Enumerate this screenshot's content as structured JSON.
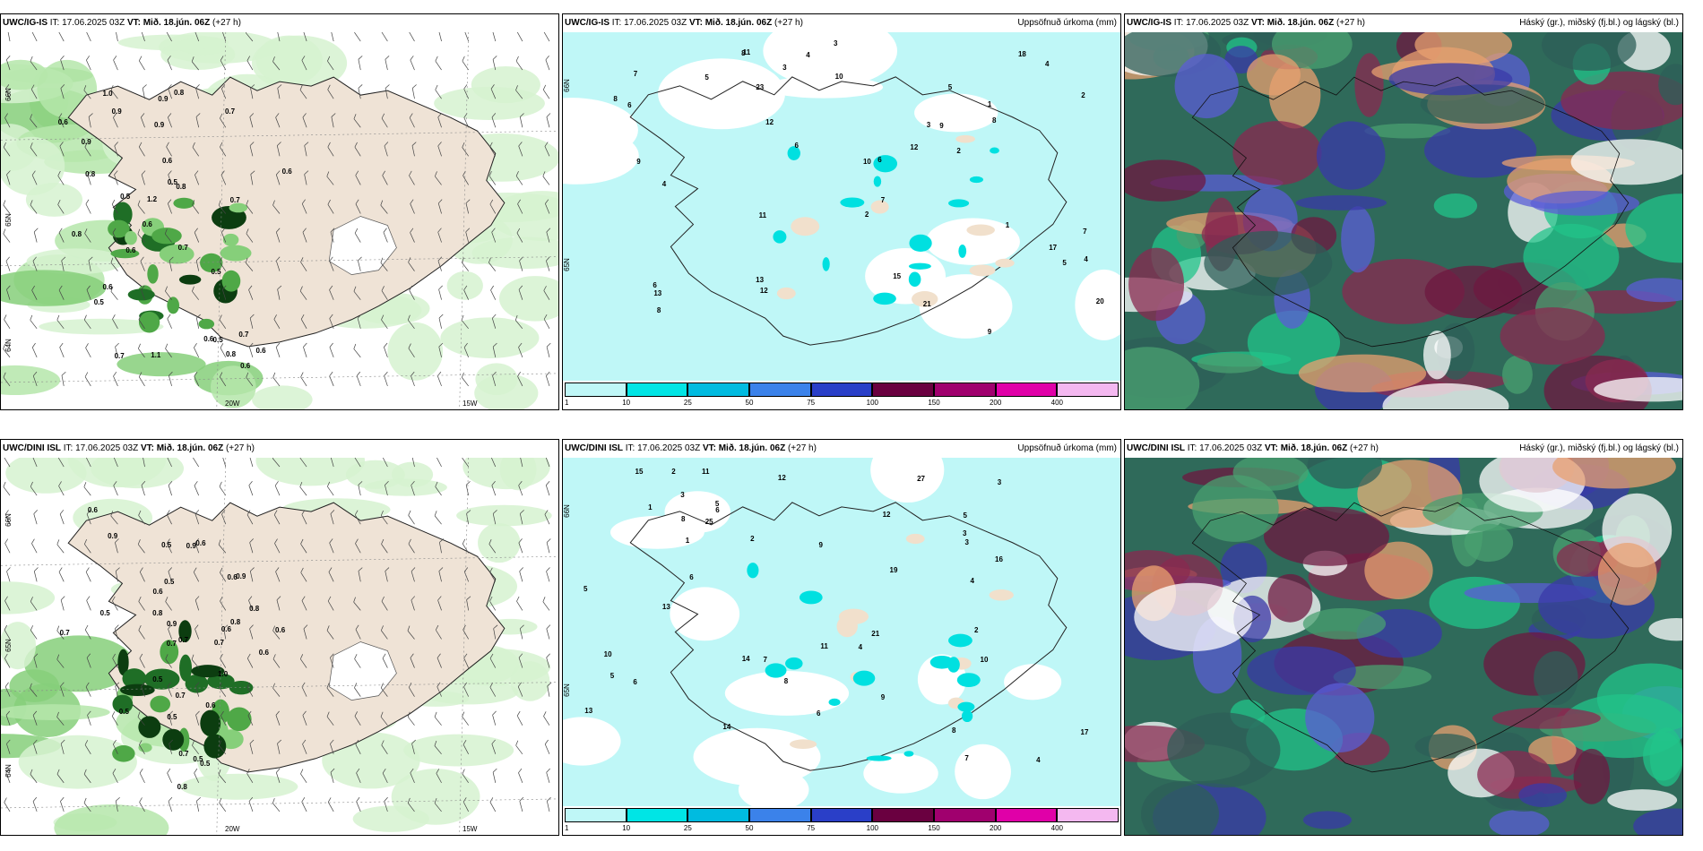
{
  "panels": [
    {
      "model": "UWC/IG-IS",
      "it": "IT: 17.06.2025 03Z",
      "vt": "VT: Mið. 18.jún. 06Z",
      "lead": "(+27 h)",
      "title": "",
      "lon_labels": [
        "20W",
        "15W"
      ],
      "lat_labels": [
        "66N",
        "65N",
        "64N"
      ],
      "values": [
        "0.5",
        "0.6",
        "0.7",
        "0.8",
        "0.9",
        "1.0",
        "1.1",
        "1.2",
        "0.6",
        "0.8",
        "0.9",
        "0.6",
        "0.7",
        "0.5",
        "0.8",
        "0.6",
        "0.6",
        "0.5",
        "0.7",
        "0.8",
        "0.9",
        "0.6",
        "0.6",
        "0.8",
        "0.7",
        "0.9",
        "0.5",
        "0.6",
        "0.7",
        "0.5",
        "0.6"
      ]
    },
    {
      "model": "UWC/IG-IS",
      "it": "IT: 17.06.2025 03Z",
      "vt": "VT: Mið. 18.jún. 06Z",
      "lead": "(+27 h)",
      "title": "Uppsöfnuð úrkoma (mm)",
      "lon_labels": [],
      "lat_labels": [
        "66N",
        "65N"
      ],
      "values": [
        "2",
        "3",
        "4",
        "5",
        "6",
        "7",
        "8",
        "9",
        "10",
        "11",
        "12",
        "13",
        "15",
        "17",
        "18",
        "20",
        "21",
        "23",
        "1",
        "2",
        "4",
        "6",
        "8",
        "12",
        "9",
        "10",
        "7",
        "5",
        "3",
        "4",
        "6",
        "8",
        "11",
        "13",
        "12",
        "9",
        "7",
        "5",
        "2",
        "1",
        "3",
        "4",
        "6",
        "8"
      ]
    },
    {
      "model": "UWC/IG-IS",
      "it": "IT: 17.06.2025 03Z",
      "vt": "VT: Mið. 18.jún. 06Z",
      "lead": "(+27 h)",
      "title": "Háský (gr.), miðský (fj.bl.) og lágský (bl.)",
      "lon_labels": [],
      "lat_labels": [],
      "values": []
    },
    {
      "model": "UWC/DINI ISL",
      "it": "IT: 17.06.2025 03Z",
      "vt": "VT: Mið. 18.jún. 06Z",
      "lead": "(+27 h)",
      "title": "",
      "lon_labels": [
        "20W",
        "15W"
      ],
      "lat_labels": [
        "66N",
        "65N",
        "64N"
      ],
      "values": [
        "0.6",
        "0.5",
        "0.7",
        "0.5",
        "0.6",
        "0.7",
        "0.9",
        "0.5",
        "0.8",
        "0.6",
        "0.9",
        "0.7",
        "0.5",
        "0.8",
        "0.6",
        "0.9",
        "1.0",
        "0.7",
        "0.5",
        "0.6",
        "0.8",
        "0.9",
        "0.7",
        "0.6",
        "0.5",
        "0.8",
        "0.7",
        "0.6",
        "0.5",
        "0.6",
        "0.5"
      ]
    },
    {
      "model": "UWC/DINI ISL",
      "it": "IT: 17.06.2025 03Z",
      "vt": "VT: Mið. 18.jún. 06Z",
      "lead": "(+27 h)",
      "title": "Uppsöfnuð úrkoma (mm)",
      "lon_labels": [],
      "lat_labels": [
        "66N",
        "65N"
      ],
      "values": [
        "3",
        "4",
        "2",
        "5",
        "6",
        "7",
        "8",
        "9",
        "10",
        "11",
        "12",
        "13",
        "14",
        "16",
        "17",
        "19",
        "21",
        "25",
        "27",
        "1",
        "2",
        "3",
        "5",
        "6",
        "8",
        "9",
        "7",
        "4",
        "3",
        "5",
        "6",
        "11",
        "13",
        "15",
        "14",
        "12",
        "10",
        "8",
        "6",
        "4",
        "2",
        "1",
        "3",
        "5"
      ]
    },
    {
      "model": "UWC/DINI ISL",
      "it": "IT: 17.06.2025 03Z",
      "vt": "VT: Mið. 18.jún. 06Z",
      "lead": "(+27 h)",
      "title": "Háský (gr.), miðský (fj.bl.) og lágský (bl.)",
      "lon_labels": [],
      "lat_labels": [],
      "values": []
    }
  ],
  "colorbar": {
    "ticks": [
      "1",
      "10",
      "25",
      "50",
      "75",
      "100",
      "150",
      "200",
      "400"
    ],
    "colors": [
      "#bff7f7",
      "#00e5e5",
      "#00bbe0",
      "#3b82ea",
      "#2a3fc8",
      "#6a0040",
      "#a0006e",
      "#e000a8",
      "#f4b8f0"
    ]
  }
}
